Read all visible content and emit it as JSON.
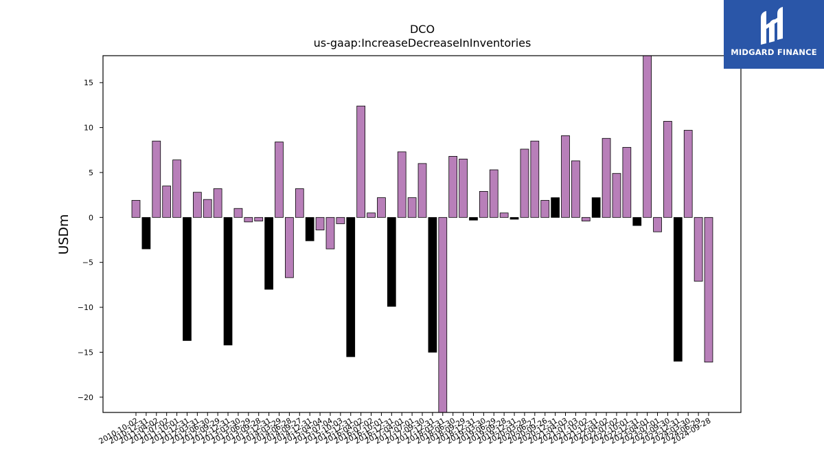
{
  "logo": {
    "text": "MIDGARD FINANCE"
  },
  "colors": {
    "positive": "#b87fb9",
    "negative_q4": "#000000",
    "edge": "#000000",
    "logo_bg": "#2a56a8"
  },
  "chart_data": {
    "type": "bar",
    "title": "DCO",
    "subtitle": "us-gaap:IncreaseDecreaseInInventories",
    "xlabel": "",
    "ylabel": "USDm",
    "ylim": [
      -21.7,
      18.0
    ],
    "yticks": [
      -20,
      -15,
      -10,
      -5,
      0,
      5,
      10,
      15
    ],
    "ytick_labels": [
      "−20",
      "−15",
      "−10",
      "−5",
      "0",
      "5",
      "10",
      "15"
    ],
    "grid": false,
    "categories": [
      "2010-10-02",
      "2010-12-31",
      "2011-04-02",
      "2011-07-02",
      "2011-10-01",
      "2011-12-31",
      "2012-03-31",
      "2012-06-30",
      "2012-09-29",
      "2012-12-31",
      "2013-03-30",
      "2013-06-29",
      "2013-09-28",
      "2013-12-31",
      "2014-03-29",
      "2014-06-28",
      "2014-09-27",
      "2014-12-31",
      "2015-04-04",
      "2015-07-04",
      "2015-10-03",
      "2015-12-31",
      "2016-04-02",
      "2016-07-02",
      "2016-10-01",
      "2016-12-31",
      "2017-04-01",
      "2017-07-01",
      "2017-09-30",
      "2017-12-31",
      "2018-03-31",
      "2018-06-30",
      "2018-09-29",
      "2018-12-31",
      "2019-03-30",
      "2019-06-29",
      "2019-09-28",
      "2019-12-31",
      "2020-03-28",
      "2020-06-27",
      "2020-09-26",
      "2020-12-31",
      "2021-04-03",
      "2021-07-03",
      "2021-10-02",
      "2021-12-31",
      "2022-04-02",
      "2022-07-02",
      "2022-10-01",
      "2022-12-31",
      "2023-04-01",
      "2023-07-01",
      "2023-09-30",
      "2023-12-31",
      "2024-03-30",
      "2024-06-29",
      "2024-09-28"
    ],
    "values": [
      1.9,
      -3.5,
      8.5,
      3.5,
      6.4,
      -13.7,
      2.8,
      2.0,
      3.2,
      -14.2,
      1.0,
      -0.5,
      -0.4,
      -8.0,
      8.4,
      -6.7,
      3.2,
      -2.6,
      -1.4,
      -3.5,
      -0.7,
      -15.5,
      12.4,
      0.5,
      2.2,
      -9.9,
      7.3,
      2.2,
      6.0,
      -15.0,
      -22.0,
      6.8,
      6.5,
      -0.3,
      2.9,
      5.3,
      0.5,
      -0.2,
      7.6,
      8.5,
      1.9,
      2.2,
      9.1,
      6.3,
      -0.4,
      2.2,
      8.8,
      4.9,
      7.8,
      -0.9,
      18.5,
      -1.6,
      10.7,
      -16.0,
      9.7,
      -7.1,
      -16.1
    ],
    "is_q4": [
      false,
      true,
      false,
      false,
      false,
      true,
      false,
      false,
      false,
      true,
      false,
      false,
      false,
      true,
      false,
      false,
      false,
      true,
      false,
      false,
      false,
      true,
      false,
      false,
      false,
      true,
      false,
      false,
      false,
      true,
      false,
      false,
      false,
      true,
      false,
      false,
      false,
      true,
      false,
      false,
      false,
      true,
      false,
      false,
      false,
      true,
      false,
      false,
      false,
      true,
      false,
      false,
      false,
      true,
      false,
      false,
      false
    ]
  }
}
